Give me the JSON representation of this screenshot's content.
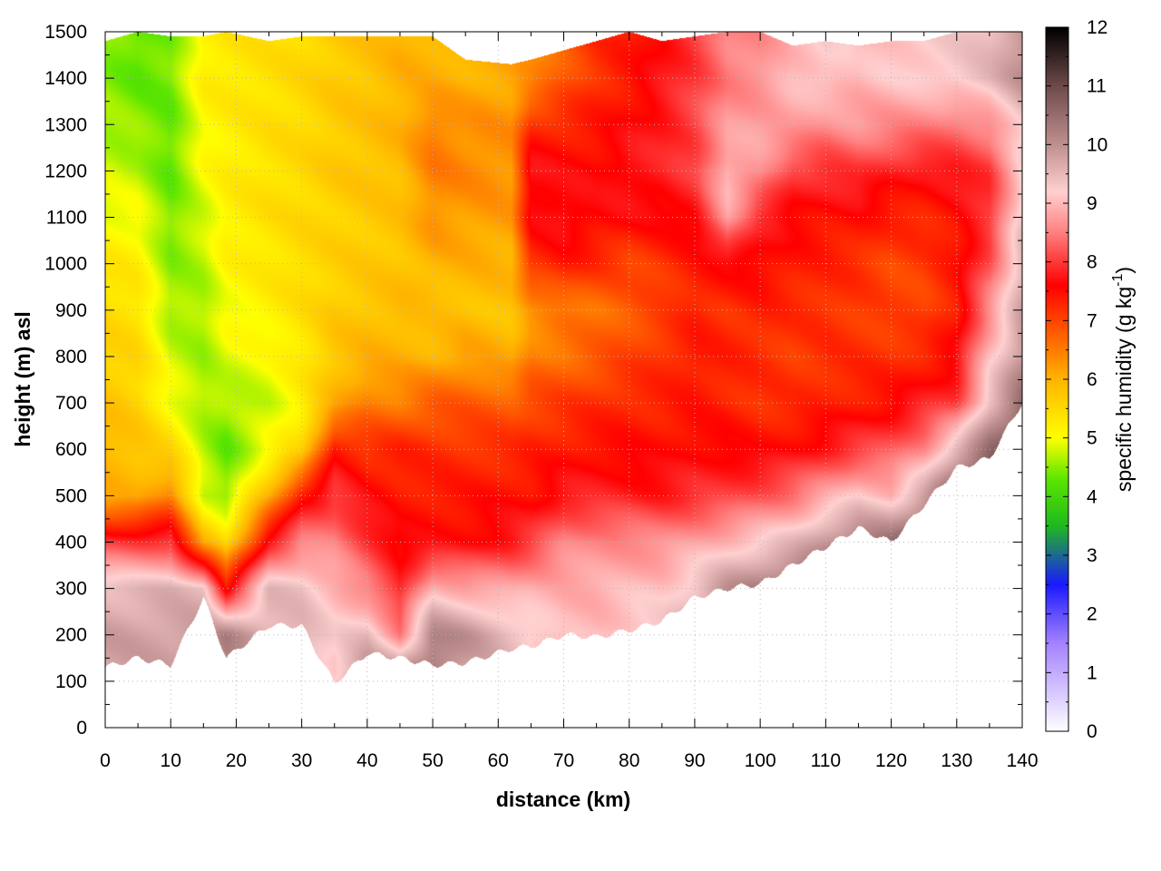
{
  "chart_data": {
    "type": "heatmap",
    "title": "",
    "xlabel": "distance (km)",
    "ylabel": "height (m) asl",
    "xlim": [
      0,
      140
    ],
    "ylim": [
      0,
      1500
    ],
    "x_ticks": [
      "0",
      "10",
      "20",
      "30",
      "40",
      "50",
      "60",
      "70",
      "80",
      "90",
      "100",
      "110",
      "120",
      "130",
      "140"
    ],
    "y_ticks": [
      "0",
      "100",
      "200",
      "300",
      "400",
      "500",
      "600",
      "700",
      "800",
      "900",
      "1000",
      "1100",
      "1200",
      "1300",
      "1400",
      "1500"
    ],
    "grid": true,
    "colorbar": {
      "label_main": "specific humidity (g kg",
      "label_sup": "-1",
      "label_end": ")",
      "range": [
        0,
        12
      ],
      "ticks": [
        "0",
        "1",
        "2",
        "3",
        "4",
        "5",
        "6",
        "7",
        "8",
        "9",
        "10",
        "11",
        "12"
      ],
      "stops": [
        {
          "value": 0,
          "color": "#ffffff"
        },
        {
          "value": 1.5,
          "color": "#a582ff"
        },
        {
          "value": 2.5,
          "color": "#1a1aff"
        },
        {
          "value": 3.5,
          "color": "#1fb91f"
        },
        {
          "value": 4.3,
          "color": "#5ce600"
        },
        {
          "value": 5.0,
          "color": "#ffff00"
        },
        {
          "value": 6.0,
          "color": "#ffb400"
        },
        {
          "value": 7.0,
          "color": "#ff4400"
        },
        {
          "value": 7.6,
          "color": "#ff0000"
        },
        {
          "value": 8.5,
          "color": "#ff8080"
        },
        {
          "value": 9.2,
          "color": "#ffd0d0"
        },
        {
          "value": 10.0,
          "color": "#c09090"
        },
        {
          "value": 11.0,
          "color": "#6e4a4a"
        },
        {
          "value": 12.0,
          "color": "#000000"
        }
      ]
    },
    "x_columns": [
      0,
      5,
      10,
      15,
      18.5,
      25,
      30,
      35,
      40,
      45,
      50,
      55,
      62,
      65,
      70,
      75,
      80,
      85,
      90,
      95,
      100,
      105,
      110,
      115,
      120,
      125,
      130,
      135,
      140
    ],
    "surface_height": [
      130,
      150,
      135,
      280,
      150,
      220,
      220,
      95,
      160,
      150,
      135,
      140,
      170,
      175,
      200,
      195,
      210,
      230,
      280,
      300,
      310,
      350,
      390,
      430,
      400,
      480,
      560,
      580,
      700
    ],
    "data_top": [
      1480,
      1500,
      1490,
      1490,
      1500,
      1480,
      1490,
      1490,
      1490,
      1490,
      1490,
      1440,
      1430,
      1440,
      1460,
      1480,
      1500,
      1480,
      1490,
      1500,
      1500,
      1470,
      1480,
      1470,
      1480,
      1480,
      1500,
      1500,
      1500
    ],
    "profile_heights": [
      0,
      100,
      200,
      300,
      400,
      500,
      600,
      700,
      800,
      900,
      1000,
      1100,
      1200,
      1300,
      1400,
      1500
    ],
    "profiles": [
      [
        9.8,
        9.8,
        9.8,
        9.5,
        8.0,
        6.0,
        6.0,
        5.8,
        5.6,
        5.5,
        5.3,
        5.0,
        4.8,
        4.6,
        4.5,
        4.5
      ],
      [
        9.8,
        9.8,
        9.8,
        9.5,
        8.0,
        6.0,
        5.8,
        5.6,
        5.5,
        5.4,
        5.2,
        5.0,
        4.7,
        4.5,
        4.3,
        4.3
      ],
      [
        9.8,
        9.8,
        9.8,
        9.6,
        8.0,
        6.5,
        5.5,
        5.0,
        4.8,
        4.6,
        4.5,
        4.4,
        4.3,
        4.3,
        4.4,
        4.4
      ],
      [
        9.9,
        9.9,
        9.9,
        9.5,
        6.0,
        4.8,
        4.7,
        4.6,
        4.6,
        4.6,
        4.7,
        4.8,
        5.0,
        5.1,
        5.2,
        5.2
      ],
      [
        10.2,
        10.2,
        10.2,
        7.5,
        5.5,
        4.5,
        4.3,
        4.6,
        4.9,
        5.0,
        5.1,
        5.2,
        5.2,
        5.2,
        5.3,
        5.3
      ],
      [
        9.6,
        9.6,
        9.6,
        9.5,
        7.8,
        6.0,
        5.0,
        4.8,
        5.0,
        5.2,
        5.3,
        5.4,
        5.4,
        5.4,
        5.4,
        5.4
      ],
      [
        9.6,
        9.6,
        9.6,
        9.4,
        8.5,
        7.5,
        5.5,
        5.2,
        5.3,
        5.4,
        5.5,
        5.5,
        5.5,
        5.5,
        5.5,
        5.5
      ],
      [
        9.2,
        9.2,
        9.2,
        9.0,
        8.5,
        8.0,
        7.5,
        6.0,
        5.8,
        5.7,
        5.6,
        5.6,
        5.7,
        5.7,
        5.7,
        5.7
      ],
      [
        10.2,
        10.2,
        9.5,
        8.5,
        8.0,
        7.6,
        7.2,
        6.5,
        6.0,
        5.8,
        5.7,
        5.7,
        5.8,
        5.8,
        5.8,
        5.8
      ],
      [
        10.5,
        10.5,
        8.5,
        7.8,
        7.6,
        7.4,
        7.3,
        6.5,
        6.0,
        5.9,
        5.8,
        5.8,
        5.9,
        6.0,
        6.0,
        6.0
      ],
      [
        10.4,
        10.4,
        10.2,
        9.0,
        7.6,
        7.4,
        7.2,
        6.8,
        6.0,
        5.8,
        6.0,
        6.3,
        6.5,
        6.5,
        6.0,
        6.0
      ],
      [
        9.8,
        9.8,
        10.0,
        8.8,
        7.6,
        7.4,
        7.2,
        6.8,
        6.2,
        5.8,
        6.0,
        6.2,
        6.4,
        6.3,
        6.0,
        6.0
      ],
      [
        9.5,
        9.5,
        9.5,
        8.8,
        7.8,
        7.5,
        7.2,
        6.8,
        6.0,
        5.8,
        6.0,
        6.2,
        6.3,
        6.3,
        6.1,
        6.1
      ],
      [
        9.3,
        9.3,
        9.3,
        8.9,
        8.0,
        7.5,
        7.3,
        7.0,
        6.5,
        6.2,
        7.2,
        7.6,
        7.8,
        7.2,
        6.3,
        6.3
      ],
      [
        9.0,
        9.0,
        9.0,
        8.9,
        8.5,
        7.8,
        7.4,
        7.1,
        6.6,
        6.5,
        7.4,
        7.8,
        7.6,
        7.3,
        6.8,
        6.8
      ],
      [
        9.0,
        9.0,
        9.0,
        8.9,
        8.6,
        7.8,
        7.5,
        7.2,
        6.8,
        6.6,
        7.2,
        7.6,
        7.6,
        7.4,
        7.2,
        7.2
      ],
      [
        9.2,
        9.2,
        9.2,
        9.0,
        8.6,
        7.8,
        7.5,
        7.3,
        7.0,
        6.8,
        7.0,
        7.6,
        7.8,
        7.6,
        7.4,
        7.4
      ],
      [
        9.3,
        9.3,
        9.3,
        9.1,
        8.6,
        7.8,
        7.5,
        7.3,
        7.2,
        7.0,
        7.2,
        7.6,
        7.8,
        7.8,
        7.7,
        7.7
      ],
      [
        9.8,
        9.8,
        9.8,
        9.4,
        8.8,
        7.9,
        7.6,
        7.4,
        7.4,
        7.3,
        7.4,
        7.7,
        8.0,
        8.1,
        8.0,
        8.0
      ],
      [
        10.2,
        10.2,
        10.2,
        10.0,
        9.0,
        8.0,
        7.6,
        7.3,
        7.3,
        7.2,
        7.6,
        8.8,
        9.0,
        8.7,
        8.5,
        8.5
      ],
      [
        10.5,
        10.5,
        10.5,
        10.3,
        9.2,
        8.2,
        7.5,
        7.2,
        7.2,
        7.3,
        7.6,
        7.8,
        8.7,
        8.8,
        8.6,
        8.6
      ],
      [
        10.6,
        10.6,
        10.6,
        10.5,
        9.5,
        8.4,
        7.6,
        7.2,
        7.1,
        7.2,
        7.4,
        7.6,
        8.0,
        8.8,
        9.0,
        9.0
      ],
      [
        10.8,
        10.8,
        10.8,
        10.6,
        10.0,
        8.8,
        7.8,
        7.3,
        7.2,
        7.2,
        7.3,
        7.5,
        7.9,
        8.6,
        9.2,
        9.2
      ],
      [
        10.9,
        10.9,
        10.9,
        10.8,
        10.3,
        9.2,
        8.0,
        7.4,
        7.2,
        7.1,
        7.2,
        7.5,
        8.0,
        8.7,
        9.0,
        9.0
      ],
      [
        10.8,
        10.8,
        10.8,
        10.8,
        10.5,
        9.0,
        8.2,
        7.5,
        7.2,
        7.0,
        7.0,
        7.3,
        7.8,
        8.6,
        9.1,
        9.1
      ],
      [
        11.0,
        11.0,
        11.0,
        11.0,
        10.8,
        9.8,
        8.6,
        7.8,
        7.3,
        7.0,
        7.1,
        7.3,
        7.7,
        8.5,
        9.2,
        9.2
      ],
      [
        11.2,
        11.2,
        11.2,
        11.2,
        11.0,
        10.8,
        9.6,
        8.0,
        7.6,
        7.4,
        7.4,
        7.5,
        7.8,
        8.4,
        9.3,
        9.3
      ],
      [
        11.5,
        11.5,
        11.5,
        11.5,
        11.4,
        11.2,
        10.5,
        9.5,
        9.0,
        8.6,
        8.2,
        7.9,
        8.0,
        8.6,
        9.5,
        9.5
      ],
      [
        11.6,
        11.6,
        11.6,
        11.6,
        11.6,
        11.5,
        11.0,
        10.5,
        10.0,
        9.8,
        9.6,
        9.4,
        9.2,
        9.3,
        10.0,
        10.0
      ]
    ]
  }
}
